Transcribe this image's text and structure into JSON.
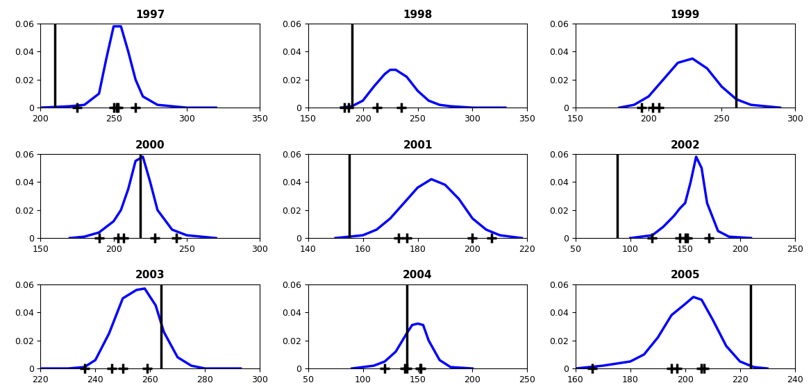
{
  "chart_data": [
    {
      "type": "line",
      "title": "1997",
      "xlim": [
        200,
        350
      ],
      "xticks": [
        200,
        250,
        300,
        350
      ],
      "ylim": [
        0,
        0.06
      ],
      "yticks": [
        0,
        0.02,
        0.04,
        0.06
      ],
      "x": [
        200,
        220,
        230,
        240,
        245,
        250,
        255,
        260,
        265,
        270,
        280,
        300,
        320
      ],
      "values": [
        0,
        0.001,
        0.002,
        0.01,
        0.035,
        0.058,
        0.058,
        0.04,
        0.02,
        0.008,
        0.002,
        0,
        0
      ],
      "color": "#0000ff",
      "line_style": "solid",
      "reference_x": 210,
      "observations": [
        225,
        250,
        252,
        253,
        265
      ],
      "marker": "+"
    },
    {
      "type": "line",
      "title": "1998",
      "xlim": [
        150,
        350
      ],
      "xticks": [
        150,
        200,
        250,
        300,
        350
      ],
      "ylim": [
        0,
        0.06
      ],
      "yticks": [
        0,
        0.02,
        0.04,
        0.06
      ],
      "x": [
        180,
        190,
        200,
        210,
        220,
        225,
        230,
        240,
        250,
        260,
        270,
        280,
        300,
        330
      ],
      "values": [
        0,
        0.001,
        0.005,
        0.015,
        0.024,
        0.027,
        0.027,
        0.022,
        0.012,
        0.005,
        0.002,
        0.001,
        0,
        0
      ],
      "color": "#0000ff",
      "line_style": "solid",
      "reference_x": 190,
      "observations": [
        183,
        187,
        213,
        235
      ],
      "marker": "+"
    },
    {
      "type": "line",
      "title": "1999",
      "xlim": [
        150,
        300
      ],
      "xticks": [
        150,
        200,
        250,
        300
      ],
      "ylim": [
        0,
        0.06
      ],
      "yticks": [
        0,
        0.02,
        0.04,
        0.06
      ],
      "x": [
        180,
        190,
        200,
        210,
        220,
        230,
        240,
        250,
        260,
        270,
        290
      ],
      "values": [
        0,
        0.002,
        0.008,
        0.02,
        0.032,
        0.035,
        0.028,
        0.015,
        0.006,
        0.002,
        0
      ],
      "color": "#0000ff",
      "line_style": "solid",
      "reference_x": 260,
      "observations": [
        195,
        203,
        207
      ],
      "marker": "+"
    },
    {
      "type": "line",
      "title": "2000",
      "xlim": [
        150,
        300
      ],
      "xticks": [
        150,
        200,
        250,
        300
      ],
      "ylim": [
        0,
        0.06
      ],
      "yticks": [
        0,
        0.02,
        0.04,
        0.06
      ],
      "x": [
        170,
        180,
        190,
        200,
        205,
        210,
        215,
        220,
        225,
        230,
        240,
        250,
        260,
        270
      ],
      "values": [
        0,
        0.001,
        0.004,
        0.012,
        0.02,
        0.035,
        0.055,
        0.058,
        0.04,
        0.02,
        0.006,
        0.002,
        0.001,
        0
      ],
      "color": "#0000ff",
      "line_style": "solid",
      "reference_x": 218,
      "observations": [
        190,
        203,
        207,
        228,
        243
      ],
      "marker": "+"
    },
    {
      "type": "line",
      "title": "2001",
      "xlim": [
        140,
        220
      ],
      "xticks": [
        140,
        160,
        180,
        200,
        220
      ],
      "ylim": [
        0,
        0.06
      ],
      "yticks": [
        0,
        0.02,
        0.04,
        0.06
      ],
      "x": [
        150,
        160,
        165,
        170,
        175,
        180,
        185,
        190,
        195,
        200,
        205,
        210,
        218
      ],
      "values": [
        0,
        0.002,
        0.006,
        0.014,
        0.025,
        0.036,
        0.042,
        0.038,
        0.028,
        0.014,
        0.006,
        0.002,
        0
      ],
      "color": "#0000ff",
      "line_style": "solid",
      "reference_x": 155,
      "observations": [
        173,
        176,
        200,
        207
      ],
      "marker": "+"
    },
    {
      "type": "line",
      "title": "2002",
      "xlim": [
        50,
        250
      ],
      "xticks": [
        50,
        100,
        150,
        200,
        250
      ],
      "ylim": [
        0,
        0.06
      ],
      "yticks": [
        0,
        0.02,
        0.04,
        0.06
      ],
      "x": [
        100,
        120,
        130,
        140,
        145,
        150,
        155,
        160,
        165,
        170,
        180,
        190,
        210
      ],
      "values": [
        0,
        0.002,
        0.008,
        0.016,
        0.021,
        0.025,
        0.04,
        0.058,
        0.05,
        0.025,
        0.005,
        0.001,
        0
      ],
      "color": "#0000ff",
      "line_style": "solid",
      "reference_x": 88,
      "observations": [
        120,
        145,
        150,
        152,
        172
      ],
      "marker": "+"
    },
    {
      "type": "line",
      "title": "2003",
      "xlim": [
        220,
        300
      ],
      "xticks": [
        220,
        240,
        260,
        280,
        300
      ],
      "ylim": [
        0,
        0.06
      ],
      "yticks": [
        0,
        0.02,
        0.04,
        0.06
      ],
      "x": [
        220,
        230,
        236,
        240,
        245,
        250,
        255,
        258,
        262,
        265,
        270,
        275,
        280,
        293
      ],
      "values": [
        0,
        0,
        0.001,
        0.006,
        0.025,
        0.05,
        0.056,
        0.057,
        0.045,
        0.026,
        0.008,
        0.002,
        0,
        0
      ],
      "color": "#0000ff",
      "line_style": "solid",
      "reference_x": 264,
      "observations": [
        236,
        246,
        250,
        259
      ],
      "marker": "+"
    },
    {
      "type": "line",
      "title": "2004",
      "xlim": [
        50,
        250
      ],
      "xticks": [
        50,
        100,
        150,
        200,
        250
      ],
      "ylim": [
        0,
        0.06
      ],
      "yticks": [
        0,
        0.02,
        0.04,
        0.06
      ],
      "x": [
        90,
        100,
        110,
        120,
        130,
        140,
        145,
        150,
        155,
        160,
        170,
        180,
        200
      ],
      "values": [
        0,
        0.001,
        0.002,
        0.005,
        0.012,
        0.025,
        0.031,
        0.032,
        0.031,
        0.02,
        0.006,
        0.001,
        0
      ],
      "color": "#0000ff",
      "line_style": "solid",
      "reference_x": 140,
      "observations": [
        120,
        138,
        140,
        152,
        153
      ],
      "marker": "+"
    },
    {
      "type": "line",
      "title": "2005",
      "xlim": [
        160,
        240
      ],
      "xticks": [
        160,
        180,
        200,
        220,
        240
      ],
      "ylim": [
        0,
        0.06
      ],
      "yticks": [
        0,
        0.02,
        0.04,
        0.06
      ],
      "x": [
        160,
        170,
        180,
        185,
        190,
        195,
        200,
        203,
        206,
        210,
        215,
        220,
        225,
        230
      ],
      "values": [
        0,
        0.002,
        0.005,
        0.01,
        0.022,
        0.038,
        0.046,
        0.051,
        0.049,
        0.035,
        0.016,
        0.005,
        0.001,
        0
      ],
      "color": "#0000ff",
      "line_style": "solid",
      "reference_x": 224,
      "observations": [
        166,
        195,
        197,
        206,
        207
      ],
      "marker": "+"
    }
  ]
}
